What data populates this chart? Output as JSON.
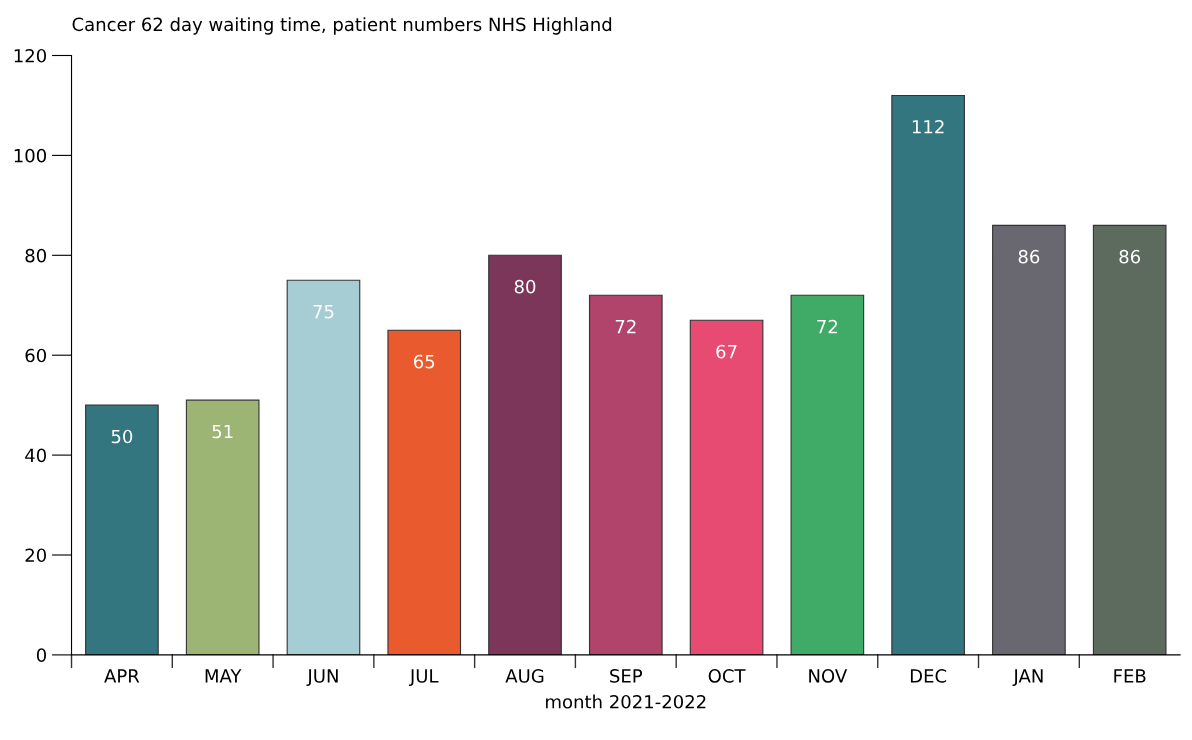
{
  "chart_data": {
    "type": "bar",
    "title": "Cancer 62 day waiting time, patient numbers NHS Highland",
    "xlabel": "month 2021-2022",
    "categories": [
      "APR",
      "MAY",
      "JUN",
      "JUL",
      "AUG",
      "SEP",
      "OCT",
      "NOV",
      "DEC",
      "JAN",
      "FEB"
    ],
    "values": [
      50,
      51,
      75,
      65,
      80,
      72,
      67,
      72,
      112,
      86,
      86
    ],
    "colors": [
      "#347680",
      "#9db574",
      "#a6cdd3",
      "#e95b2e",
      "#7b3659",
      "#b0446a",
      "#e84b72",
      "#3fab66",
      "#347680",
      "#696870",
      "#5c6b5d"
    ],
    "ylim": [
      0,
      120
    ],
    "yticks": [
      0,
      20,
      40,
      60,
      80,
      100,
      120
    ],
    "data_labels": true,
    "grid": false,
    "legend": false
  }
}
